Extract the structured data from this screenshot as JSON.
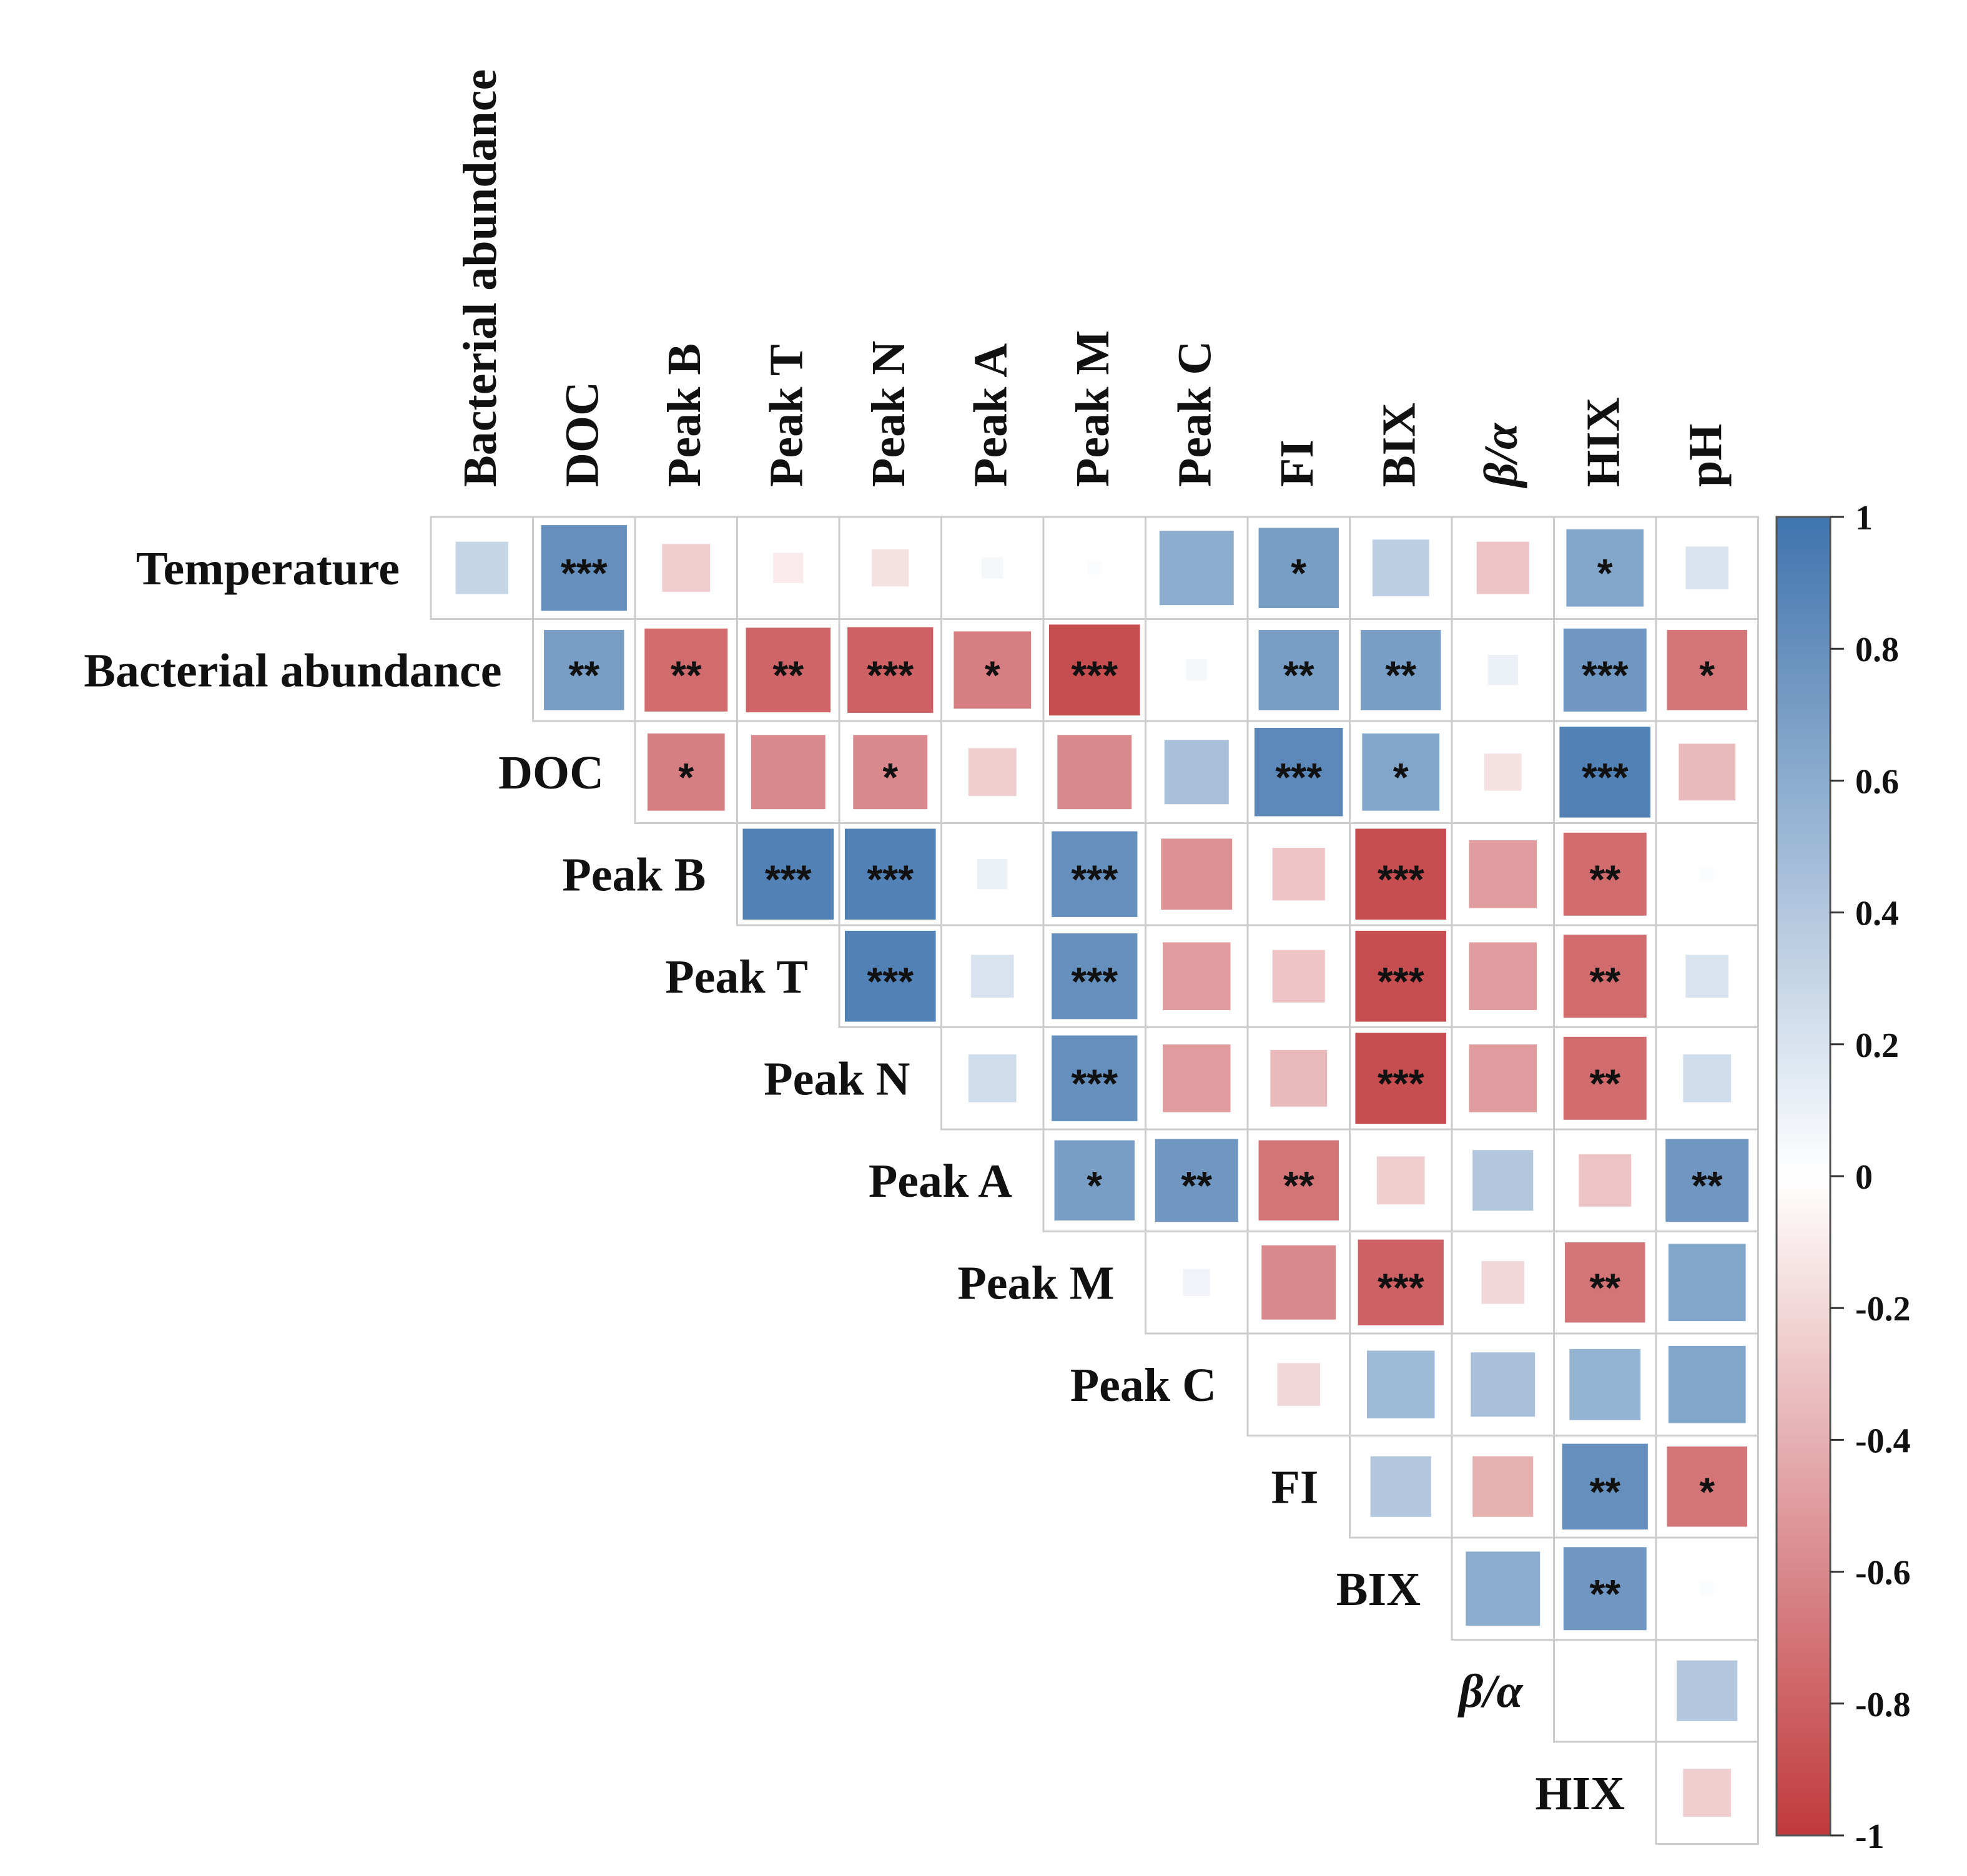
{
  "chart_data": {
    "type": "heatmap",
    "subtype": "upper-triangle correlation matrix",
    "row_labels": [
      "Temperature",
      "Bacterial abundance",
      "DOC",
      "Peak B",
      "Peak T",
      "Peak N",
      "Peak A",
      "Peak M",
      "Peak C",
      "FI",
      "BIX",
      "β/α",
      "HIX"
    ],
    "col_labels": [
      "Bacterial abundance",
      "DOC",
      "Peak B",
      "Peak T",
      "Peak N",
      "Peak A",
      "Peak M",
      "Peak C",
      "FI",
      "BIX",
      "β/α",
      "HIX",
      "pH"
    ],
    "italic_labels": [
      "β/α"
    ],
    "values": [
      [
        0.3,
        0.8,
        -0.25,
        -0.1,
        -0.15,
        0.05,
        0.02,
        0.6,
        0.7,
        0.35,
        -0.3,
        0.65,
        0.2
      ],
      [
        null,
        0.7,
        -0.75,
        -0.78,
        -0.8,
        -0.65,
        -0.9,
        0.05,
        0.7,
        0.7,
        0.1,
        0.75,
        -0.7
      ],
      [
        null,
        null,
        -0.65,
        -0.6,
        -0.6,
        -0.25,
        -0.6,
        0.45,
        0.85,
        0.65,
        -0.15,
        0.9,
        -0.35
      ],
      [
        null,
        null,
        null,
        0.9,
        0.9,
        0.1,
        0.8,
        -0.55,
        -0.3,
        -0.9,
        -0.5,
        -0.75,
        0.02
      ],
      [
        null,
        null,
        null,
        null,
        0.9,
        0.2,
        0.8,
        -0.5,
        -0.3,
        -0.9,
        -0.5,
        -0.75,
        0.2
      ],
      [
        null,
        null,
        null,
        null,
        null,
        0.25,
        0.8,
        -0.5,
        -0.35,
        -0.9,
        -0.5,
        -0.75,
        0.25
      ],
      [
        null,
        null,
        null,
        null,
        null,
        null,
        0.7,
        0.75,
        -0.7,
        -0.25,
        0.4,
        -0.3,
        0.75
      ],
      [
        null,
        null,
        null,
        null,
        null,
        null,
        null,
        0.08,
        -0.6,
        -0.8,
        -0.2,
        -0.7,
        0.65
      ],
      [
        null,
        null,
        null,
        null,
        null,
        null,
        null,
        null,
        -0.2,
        0.5,
        0.45,
        0.55,
        0.65
      ],
      [
        null,
        null,
        null,
        null,
        null,
        null,
        null,
        null,
        null,
        0.4,
        -0.4,
        0.8,
        -0.7
      ],
      [
        null,
        null,
        null,
        null,
        null,
        null,
        null,
        null,
        null,
        null,
        0.6,
        0.75,
        0.02
      ],
      [
        null,
        null,
        null,
        null,
        null,
        null,
        null,
        null,
        null,
        null,
        null,
        0.0,
        0.4
      ],
      [
        null,
        null,
        null,
        null,
        null,
        null,
        null,
        null,
        null,
        null,
        null,
        null,
        -0.25
      ]
    ],
    "significance": [
      [
        "",
        "***",
        "",
        "",
        "",
        "",
        "",
        "",
        "*",
        "",
        "",
        "*",
        ""
      ],
      [
        "",
        "**",
        "**",
        "**",
        "***",
        "*",
        "***",
        "",
        "**",
        "**",
        "",
        "***",
        "*"
      ],
      [
        "",
        "",
        "*",
        "",
        "*",
        "",
        "",
        "",
        "***",
        "*",
        "",
        "***",
        ""
      ],
      [
        "",
        "",
        "",
        "***",
        "***",
        "",
        "***",
        "",
        "",
        "***",
        "",
        "**",
        ""
      ],
      [
        "",
        "",
        "",
        "",
        "***",
        "",
        "***",
        "",
        "",
        "***",
        "",
        "**",
        ""
      ],
      [
        "",
        "",
        "",
        "",
        "",
        "",
        "***",
        "",
        "",
        "***",
        "",
        "**",
        ""
      ],
      [
        "",
        "",
        "",
        "",
        "",
        "",
        "*",
        "**",
        "**",
        "",
        "",
        "",
        "**"
      ],
      [
        "",
        "",
        "",
        "",
        "",
        "",
        "",
        "",
        "",
        "***",
        "",
        "**",
        ""
      ],
      [
        "",
        "",
        "",
        "",
        "",
        "",
        "",
        "",
        "",
        "",
        "",
        "",
        ""
      ],
      [
        "",
        "",
        "",
        "",
        "",
        "",
        "",
        "",
        "",
        "",
        "",
        "**",
        "*"
      ],
      [
        "",
        "",
        "",
        "",
        "",
        "",
        "",
        "",
        "",
        "",
        "",
        "**",
        ""
      ],
      [
        "",
        "",
        "",
        "",
        "",
        "",
        "",
        "",
        "",
        "",
        "",
        "",
        ""
      ],
      [
        "",
        "",
        "",
        "",
        "",
        "",
        "",
        "",
        "",
        "",
        "",
        "",
        ""
      ]
    ],
    "colorbar": {
      "range": [
        -1,
        1
      ],
      "ticks": [
        "1",
        "0.8",
        "0.6",
        "0.4",
        "0.2",
        "0",
        "-0.2",
        "-0.4",
        "-0.6",
        "-0.8",
        "-1"
      ],
      "tick_values": [
        1,
        0.8,
        0.6,
        0.4,
        0.2,
        0,
        -0.2,
        -0.4,
        -0.6,
        -0.8,
        -1
      ]
    },
    "colors": {
      "negative": "#c0393d",
      "neutral": "#ffffff",
      "positive": "#3f74ad",
      "grid": "#cccccc",
      "text": "#111111"
    }
  }
}
